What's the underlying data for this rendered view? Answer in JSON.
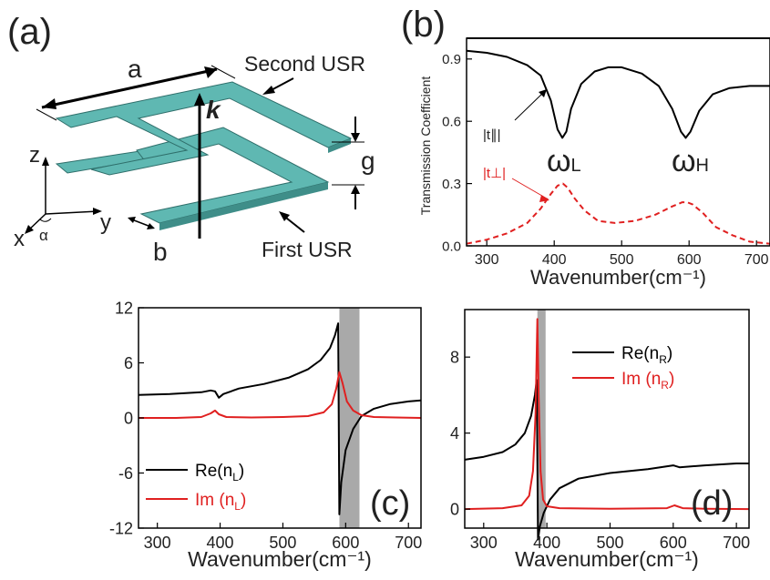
{
  "panels": {
    "a": {
      "label": "(a)",
      "dim_a": "a",
      "dim_b": "b",
      "dim_g": "g",
      "wave_vector": "k",
      "second_usr": "Second USR",
      "first_usr": "First USR",
      "axis_z": "z",
      "axis_y": "y",
      "axis_x": "x",
      "angle": "α",
      "colors": {
        "plate": "#5fb8b2",
        "plate_edge": "#2f6f6b"
      }
    },
    "b": {
      "label": "(b)",
      "omega_l": {
        "symbol": "ω",
        "sub": "L"
      },
      "omega_h": {
        "symbol": "ω",
        "sub": "H"
      },
      "t_parallel": "|t∥|",
      "t_perp": "|t⊥|"
    },
    "c": {
      "label": "(c)"
    },
    "d": {
      "label": "(d)"
    }
  },
  "chart_data": [
    {
      "id": "b",
      "type": "line",
      "xlabel": "Wavenumber(cm⁻¹)",
      "ylabel": "Transmission Coefficient",
      "xlim": [
        270,
        720
      ],
      "ylim": [
        0,
        1
      ],
      "xticks": [
        300,
        400,
        500,
        600,
        700
      ],
      "yticks": [
        0.0,
        0.3,
        0.6,
        0.9
      ],
      "series": [
        {
          "name": "|t∥|",
          "color": "#000000",
          "style": "solid",
          "x": [
            270,
            300,
            330,
            360,
            380,
            395,
            405,
            412,
            418,
            425,
            440,
            460,
            480,
            500,
            530,
            555,
            575,
            588,
            595,
            602,
            615,
            635,
            660,
            690,
            720
          ],
          "y": [
            0.94,
            0.93,
            0.91,
            0.87,
            0.82,
            0.7,
            0.56,
            0.52,
            0.55,
            0.66,
            0.78,
            0.84,
            0.86,
            0.86,
            0.83,
            0.77,
            0.66,
            0.55,
            0.52,
            0.55,
            0.65,
            0.73,
            0.76,
            0.77,
            0.77
          ]
        },
        {
          "name": "|t⊥|",
          "color": "#e02020",
          "style": "dashed",
          "x": [
            270,
            300,
            330,
            360,
            380,
            395,
            405,
            413,
            420,
            430,
            445,
            465,
            490,
            520,
            550,
            575,
            590,
            597,
            605,
            620,
            640,
            665,
            690,
            720
          ],
          "y": [
            0.01,
            0.03,
            0.06,
            0.11,
            0.18,
            0.25,
            0.29,
            0.3,
            0.28,
            0.23,
            0.17,
            0.12,
            0.11,
            0.12,
            0.15,
            0.19,
            0.21,
            0.21,
            0.2,
            0.16,
            0.09,
            0.05,
            0.02,
            0.01
          ]
        },
        {
          "name": "",
          "color": "#000000",
          "style": "solid",
          "x": [
            270,
            720
          ],
          "y": [
            1.0,
            1.0
          ]
        }
      ]
    },
    {
      "id": "c",
      "type": "line",
      "xlabel": "Wavenumber(cm⁻¹)",
      "ylabel": "",
      "xlim": [
        270,
        720
      ],
      "ylim": [
        -12,
        12
      ],
      "xticks": [
        300,
        400,
        500,
        600,
        700
      ],
      "yticks": [
        -12,
        -6,
        0,
        6,
        12
      ],
      "shaded_band": [
        590,
        622
      ],
      "legend": [
        {
          "name": "Re(n",
          "sub": "L",
          "close": ")",
          "color": "#000000"
        },
        {
          "name": "Im (n",
          "sub": "L",
          "close": ")",
          "color": "#e02020"
        }
      ],
      "series": [
        {
          "name": "Re(nL)",
          "color": "#000000",
          "x": [
            270,
            320,
            370,
            385,
            392,
            398,
            405,
            430,
            470,
            510,
            540,
            560,
            575,
            583,
            588,
            590,
            593,
            600,
            612,
            625,
            645,
            670,
            700,
            720
          ],
          "y": [
            2.5,
            2.6,
            2.8,
            3.0,
            2.9,
            2.2,
            2.6,
            3.2,
            3.7,
            4.4,
            5.3,
            6.3,
            7.6,
            9.0,
            10.3,
            -10.5,
            -7.0,
            -3.5,
            -1.2,
            0.2,
            1.0,
            1.5,
            1.8,
            1.9
          ]
        },
        {
          "name": "Im(nL)",
          "color": "#e02020",
          "x": [
            270,
            330,
            370,
            385,
            392,
            398,
            410,
            450,
            500,
            540,
            565,
            578,
            585,
            590,
            595,
            602,
            612,
            625,
            645,
            680,
            720
          ],
          "y": [
            0.0,
            0.0,
            0.1,
            0.5,
            0.8,
            0.4,
            0.1,
            0.05,
            0.1,
            0.2,
            0.6,
            1.5,
            3.2,
            5.0,
            3.8,
            1.8,
            0.8,
            0.3,
            0.1,
            0.05,
            0.0
          ]
        }
      ]
    },
    {
      "id": "d",
      "type": "line",
      "xlabel": "Wavenumber(cm⁻¹)",
      "ylabel": "",
      "xlim": [
        270,
        720
      ],
      "ylim": [
        -1,
        10.5
      ],
      "xticks": [
        300,
        400,
        500,
        600,
        700
      ],
      "yticks": [
        0,
        4,
        8
      ],
      "shaded_band": [
        385,
        398
      ],
      "legend": [
        {
          "name": "Re(n",
          "sub": "R",
          "close": ")",
          "color": "#000000"
        },
        {
          "name": "Im (n",
          "sub": "R",
          "close": ")",
          "color": "#e02020"
        }
      ],
      "series": [
        {
          "name": "Re(nR)",
          "color": "#000000",
          "x": [
            270,
            300,
            330,
            350,
            365,
            375,
            381,
            384,
            386,
            389,
            395,
            405,
            420,
            450,
            500,
            560,
            600,
            610,
            650,
            700,
            720
          ],
          "y": [
            2.6,
            2.75,
            3.0,
            3.4,
            4.0,
            4.9,
            6.0,
            6.8,
            -1.6,
            -0.9,
            -0.2,
            0.5,
            1.1,
            1.6,
            1.9,
            2.1,
            2.3,
            2.2,
            2.3,
            2.4,
            2.4
          ]
        },
        {
          "name": "Im(nR)",
          "color": "#e02020",
          "x": [
            270,
            330,
            360,
            372,
            378,
            382,
            385,
            387,
            390,
            394,
            400,
            420,
            500,
            590,
            602,
            615,
            650,
            720
          ],
          "y": [
            0.0,
            0.05,
            0.2,
            0.7,
            2.0,
            5.0,
            10.0,
            6.0,
            2.0,
            0.5,
            0.15,
            0.05,
            0.02,
            0.05,
            0.2,
            0.05,
            0.02,
            0.0
          ]
        }
      ]
    }
  ]
}
